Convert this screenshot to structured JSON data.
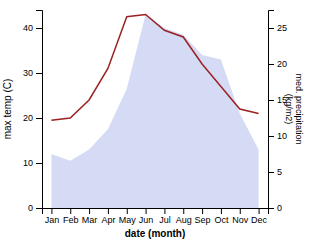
{
  "chart_data": {
    "type": "line",
    "xlabel": "date (month)",
    "ylabel": "max temp (C)",
    "y2label": "med. precipitation\n(kg/m2)",
    "categories": [
      "Jan",
      "Feb",
      "Mar",
      "Apr",
      "May",
      "Jun",
      "Jul",
      "Aug",
      "Sep",
      "Oct",
      "Nov",
      "Dec"
    ],
    "series": [
      {
        "type": "area",
        "color": "#c0c8f0",
        "values": [
          12.0,
          10.5,
          13.0,
          17.5,
          26.5,
          43.0,
          40.0,
          38.5,
          34.0,
          33.0,
          21.0,
          13.0
        ]
      },
      {
        "type": "line",
        "color": "#992222",
        "values": [
          19.5,
          20.0,
          24.0,
          31.0,
          42.5,
          43.0,
          39.5,
          38.0,
          32.0,
          27.0,
          22.0,
          21.0
        ]
      }
    ],
    "ylim": [
      0,
      44
    ],
    "yticks": [
      0,
      10,
      20,
      30,
      40
    ],
    "y2lim": [
      0,
      27.5
    ],
    "y2ticks": [
      0,
      5,
      10,
      15,
      20,
      25
    ],
    "grid": false
  }
}
